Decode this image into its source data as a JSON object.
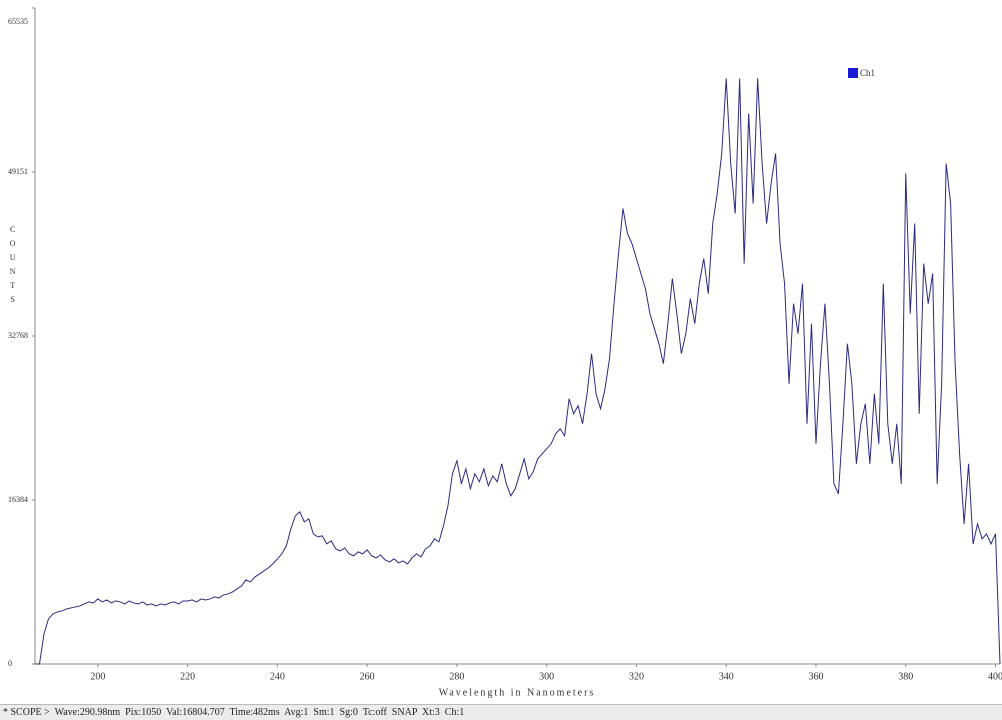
{
  "chart_data": {
    "type": "line",
    "xlabel": "Wavelength in Nanometers",
    "ylabel": "COUNTS",
    "xlim": [
      186,
      401
    ],
    "xticks": [
      200,
      220,
      240,
      260,
      280,
      300,
      320,
      340,
      360,
      380,
      400
    ],
    "ylim": [
      0,
      65535
    ],
    "yticks": [
      0,
      16384,
      32768,
      49151,
      65535
    ],
    "legend": "top-right",
    "x": [
      186,
      187,
      188,
      189,
      190,
      191,
      192,
      193,
      194,
      195,
      196,
      197,
      198,
      199,
      200,
      201,
      202,
      203,
      204,
      205,
      206,
      207,
      208,
      209,
      210,
      211,
      212,
      213,
      214,
      215,
      216,
      217,
      218,
      219,
      220,
      221,
      222,
      223,
      224,
      225,
      226,
      227,
      228,
      229,
      230,
      231,
      232,
      233,
      234,
      235,
      236,
      237,
      238,
      239,
      240,
      241,
      242,
      243,
      244,
      245,
      246,
      247,
      248,
      249,
      250,
      251,
      252,
      253,
      254,
      255,
      256,
      257,
      258,
      259,
      260,
      261,
      262,
      263,
      264,
      265,
      266,
      267,
      268,
      269,
      270,
      271,
      272,
      273,
      274,
      275,
      276,
      277,
      278,
      279,
      280,
      281,
      282,
      283,
      284,
      285,
      286,
      287,
      288,
      289,
      290,
      291,
      292,
      293,
      294,
      295,
      296,
      297,
      298,
      299,
      300,
      301,
      302,
      303,
      304,
      305,
      306,
      307,
      308,
      309,
      310,
      311,
      312,
      313,
      314,
      315,
      316,
      317,
      318,
      319,
      320,
      321,
      322,
      323,
      324,
      325,
      326,
      327,
      328,
      329,
      330,
      331,
      332,
      333,
      334,
      335,
      336,
      337,
      338,
      339,
      340,
      341,
      342,
      343,
      344,
      345,
      346,
      347,
      348,
      349,
      350,
      351,
      352,
      353,
      354,
      355,
      356,
      357,
      358,
      359,
      360,
      361,
      362,
      363,
      364,
      365,
      366,
      367,
      368,
      369,
      370,
      371,
      372,
      373,
      374,
      375,
      376,
      377,
      378,
      379,
      380,
      381,
      382,
      383,
      384,
      385,
      386,
      387,
      388,
      389,
      390,
      391,
      392,
      393,
      394,
      395,
      396,
      397,
      398,
      399,
      400,
      401
    ],
    "series": [
      {
        "name": "Ch1",
        "color": "#2b2b80",
        "legend_color": "#1a1ad6",
        "values": [
          0,
          0,
          3000,
          4500,
          5000,
          5200,
          5300,
          5500,
          5600,
          5700,
          5800,
          6000,
          6200,
          6100,
          6500,
          6200,
          6400,
          6100,
          6300,
          6200,
          6000,
          6300,
          6100,
          6000,
          6200,
          5900,
          6000,
          5800,
          6000,
          5900,
          6100,
          6200,
          6000,
          6300,
          6300,
          6400,
          6200,
          6500,
          6400,
          6500,
          6700,
          6600,
          6900,
          7000,
          7200,
          7500,
          7800,
          8400,
          8200,
          8700,
          9000,
          9300,
          9600,
          10000,
          10500,
          11000,
          11800,
          13500,
          14800,
          15200,
          14200,
          14500,
          13000,
          12700,
          12800,
          12000,
          12300,
          11500,
          11300,
          11600,
          11000,
          10800,
          11200,
          11000,
          11400,
          10800,
          10600,
          10900,
          10400,
          10200,
          10500,
          10100,
          10300,
          10000,
          10600,
          11000,
          10700,
          11500,
          11800,
          12500,
          12200,
          13800,
          15800,
          19000,
          20300,
          18000,
          19500,
          17500,
          19000,
          18200,
          19500,
          17800,
          18800,
          18200,
          20000,
          18000,
          16800,
          17500,
          19000,
          20500,
          18500,
          19200,
          20500,
          21000,
          21500,
          22000,
          23000,
          23500,
          22800,
          26500,
          25000,
          25800,
          24000,
          27000,
          31000,
          27000,
          25500,
          27500,
          30500,
          36000,
          41000,
          45500,
          43000,
          42000,
          40500,
          39000,
          37500,
          35000,
          33500,
          32000,
          30000,
          34000,
          38500,
          35000,
          31000,
          33000,
          36500,
          34000,
          38000,
          40500,
          37000,
          44000,
          47000,
          51000,
          58500,
          50000,
          45000,
          58500,
          40000,
          55000,
          46000,
          58500,
          50000,
          44000,
          48000,
          51000,
          42000,
          38000,
          28000,
          36000,
          33000,
          38000,
          24000,
          34000,
          22000,
          30000,
          36000,
          28000,
          18000,
          17000,
          24000,
          32000,
          28000,
          20000,
          24000,
          26000,
          20000,
          27000,
          22000,
          38000,
          24000,
          20000,
          24000,
          18000,
          49000,
          35000,
          44000,
          25000,
          40000,
          36000,
          39000,
          18000,
          28000,
          50000,
          46000,
          30000,
          21000,
          14000,
          20000,
          12000,
          14000,
          12500,
          13000,
          12000,
          13000,
          0
        ]
      }
    ]
  },
  "status_bar": "* SCOPE >  Wave:290.98nm  Pix:1050  Val:16804.707  Time:482ms  Avg:1  Sm:1  Sg:0  Tc:off  SNAP  Xt:3  Ch:1"
}
